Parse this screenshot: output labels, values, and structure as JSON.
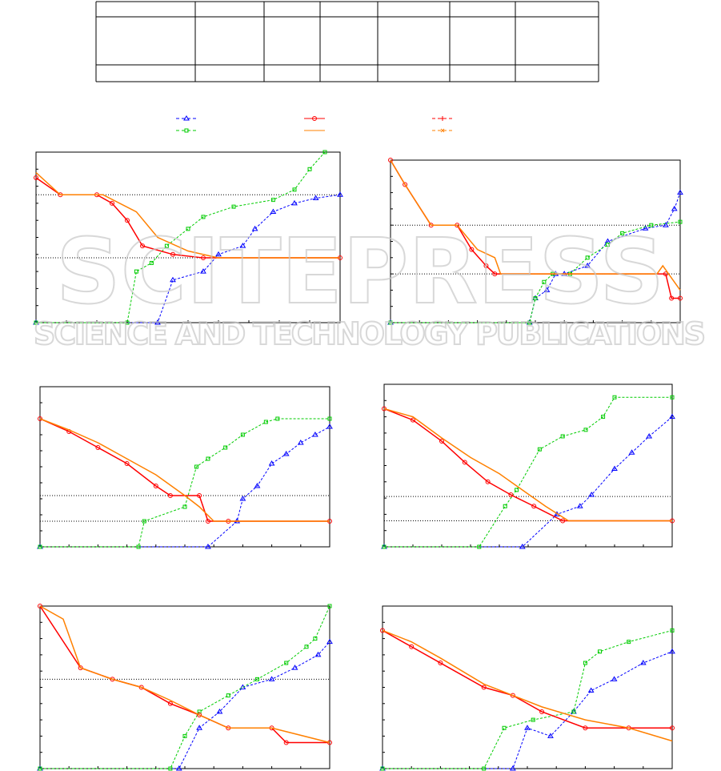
{
  "watermark": {
    "title": "SCITEPRESS",
    "subtitle": "SCIENCE AND TECHNOLOGY PUBLICATIONS"
  },
  "chart_data": [
    {
      "type": "line",
      "xlim": [
        0,
        100
      ],
      "ylim": [
        0,
        100
      ],
      "hlines": [
        75,
        38
      ],
      "series": [
        {
          "color": "#0000ff",
          "marker": "triangle",
          "dashed": true,
          "x": [
            0,
            40,
            45,
            55,
            60,
            68,
            72,
            78,
            85,
            92,
            100
          ],
          "values": [
            0,
            0,
            25,
            30,
            40,
            45,
            55,
            65,
            70,
            73,
            75
          ]
        },
        {
          "color": "#00cc00",
          "marker": "square",
          "dashed": true,
          "x": [
            0,
            30,
            33,
            38,
            43,
            50,
            55,
            65,
            78,
            85,
            90,
            95
          ],
          "values": [
            0,
            0,
            30,
            35,
            45,
            55,
            62,
            68,
            72,
            78,
            90,
            100
          ]
        },
        {
          "color": "#ff0000",
          "marker": "circle",
          "dashed": false,
          "x": [
            0,
            8,
            20,
            25,
            30,
            35,
            45,
            55,
            100
          ],
          "values": [
            85,
            75,
            75,
            70,
            60,
            45,
            40,
            38,
            38
          ]
        },
        {
          "color": "#ff8000",
          "marker": "none",
          "dashed": false,
          "x": [
            0,
            8,
            22,
            33,
            40,
            50,
            60,
            100
          ],
          "values": [
            88,
            75,
            75,
            65,
            50,
            42,
            38,
            38
          ]
        }
      ]
    },
    {
      "type": "line",
      "xlim": [
        0,
        100
      ],
      "ylim": [
        0,
        100
      ],
      "hlines": [
        60,
        30
      ],
      "series": [
        {
          "color": "#0000ff",
          "marker": "triangle",
          "dashed": true,
          "x": [
            0,
            48,
            50,
            54,
            57,
            60,
            68,
            75,
            88,
            95,
            98,
            100
          ],
          "values": [
            0,
            0,
            15,
            20,
            30,
            30,
            35,
            50,
            58,
            60,
            70,
            80
          ]
        },
        {
          "color": "#00cc00",
          "marker": "square",
          "dashed": true,
          "x": [
            0,
            48,
            50,
            53,
            56,
            62,
            68,
            75,
            80,
            90,
            100
          ],
          "values": [
            0,
            0,
            15,
            25,
            30,
            30,
            40,
            48,
            55,
            60,
            62
          ]
        },
        {
          "color": "#ff0000",
          "marker": "circle",
          "dashed": false,
          "x": [
            0,
            5,
            14,
            23,
            28,
            33,
            36,
            95,
            97,
            100
          ],
          "values": [
            100,
            85,
            60,
            60,
            45,
            35,
            30,
            30,
            15,
            15
          ]
        },
        {
          "color": "#ff8000",
          "marker": "none",
          "dashed": false,
          "x": [
            0,
            5,
            14,
            23,
            30,
            36,
            38,
            92,
            94,
            100
          ],
          "values": [
            100,
            85,
            60,
            60,
            45,
            40,
            30,
            30,
            35,
            20
          ]
        }
      ]
    },
    {
      "type": "line",
      "xlim": [
        0,
        100
      ],
      "ylim": [
        0,
        100
      ],
      "hlines": [
        32,
        16
      ],
      "series": [
        {
          "color": "#0000ff",
          "marker": "triangle",
          "dashed": true,
          "x": [
            0,
            58,
            68,
            70,
            75,
            80,
            85,
            90,
            95,
            100
          ],
          "values": [
            0,
            0,
            16,
            30,
            38,
            52,
            58,
            65,
            70,
            75
          ]
        },
        {
          "color": "#00cc00",
          "marker": "square",
          "dashed": true,
          "x": [
            0,
            34,
            36,
            50,
            54,
            58,
            64,
            70,
            78,
            82,
            100
          ],
          "values": [
            0,
            0,
            16,
            25,
            50,
            55,
            62,
            70,
            78,
            80,
            80
          ]
        },
        {
          "color": "#ff0000",
          "marker": "circle",
          "dashed": false,
          "x": [
            0,
            10,
            20,
            30,
            40,
            45,
            55,
            58,
            65,
            100
          ],
          "values": [
            80,
            72,
            62,
            52,
            38,
            32,
            32,
            16,
            16,
            16
          ]
        },
        {
          "color": "#ff8000",
          "marker": "none",
          "dashed": false,
          "x": [
            0,
            10,
            20,
            30,
            40,
            50,
            55,
            60,
            100
          ],
          "values": [
            80,
            73,
            65,
            55,
            45,
            32,
            25,
            16,
            16
          ]
        }
      ]
    },
    {
      "type": "line",
      "xlim": [
        0,
        100
      ],
      "ylim": [
        0,
        100
      ],
      "hlines": [
        31,
        16
      ],
      "series": [
        {
          "color": "#0000ff",
          "marker": "triangle",
          "dashed": true,
          "x": [
            0,
            48,
            60,
            68,
            72,
            80,
            86,
            92,
            100
          ],
          "values": [
            0,
            0,
            20,
            25,
            32,
            48,
            58,
            68,
            80
          ]
        },
        {
          "color": "#00cc00",
          "marker": "square",
          "dashed": true,
          "x": [
            0,
            33,
            42,
            46,
            54,
            62,
            70,
            76,
            80,
            100
          ],
          "values": [
            0,
            0,
            25,
            35,
            60,
            68,
            72,
            80,
            92,
            92
          ]
        },
        {
          "color": "#ff0000",
          "marker": "circle",
          "dashed": false,
          "x": [
            0,
            10,
            20,
            28,
            36,
            44,
            52,
            62,
            100
          ],
          "values": [
            85,
            78,
            65,
            52,
            40,
            32,
            25,
            16,
            16
          ]
        },
        {
          "color": "#ff8000",
          "marker": "none",
          "dashed": false,
          "x": [
            0,
            10,
            20,
            30,
            40,
            48,
            56,
            64,
            100
          ],
          "values": [
            85,
            80,
            67,
            55,
            45,
            35,
            25,
            16,
            16
          ]
        }
      ]
    },
    {
      "type": "line",
      "xlim": [
        0,
        100
      ],
      "ylim": [
        0,
        100
      ],
      "hlines": [
        55
      ],
      "series": [
        {
          "color": "#0000ff",
          "marker": "triangle",
          "dashed": true,
          "x": [
            0,
            48,
            55,
            62,
            70,
            80,
            88,
            96,
            100
          ],
          "values": [
            0,
            0,
            25,
            35,
            50,
            55,
            62,
            70,
            78
          ]
        },
        {
          "color": "#00cc00",
          "marker": "square",
          "dashed": true,
          "x": [
            0,
            45,
            50,
            55,
            65,
            75,
            85,
            92,
            95,
            100
          ],
          "values": [
            0,
            0,
            20,
            35,
            45,
            55,
            65,
            75,
            80,
            100
          ]
        },
        {
          "color": "#ff0000",
          "marker": "circle",
          "dashed": false,
          "x": [
            0,
            14,
            25,
            35,
            45,
            55,
            65,
            80,
            85,
            100
          ],
          "values": [
            100,
            62,
            55,
            50,
            40,
            33,
            25,
            25,
            16,
            16
          ]
        },
        {
          "color": "#ff8000",
          "marker": "none",
          "dashed": false,
          "x": [
            0,
            8,
            14,
            25,
            35,
            45,
            55,
            65,
            80,
            100
          ],
          "values": [
            100,
            92,
            62,
            55,
            50,
            42,
            33,
            25,
            25,
            16
          ]
        }
      ]
    },
    {
      "type": "line",
      "xlim": [
        0,
        100
      ],
      "ylim": [
        0,
        100
      ],
      "hlines": [],
      "series": [
        {
          "color": "#0000ff",
          "marker": "triangle",
          "dashed": true,
          "x": [
            0,
            45,
            50,
            58,
            66,
            72,
            80,
            90,
            100
          ],
          "values": [
            0,
            0,
            25,
            20,
            35,
            48,
            55,
            65,
            72
          ]
        },
        {
          "color": "#00cc00",
          "marker": "square",
          "dashed": true,
          "x": [
            0,
            35,
            42,
            52,
            66,
            70,
            75,
            85,
            100
          ],
          "values": [
            0,
            0,
            25,
            30,
            35,
            65,
            72,
            78,
            85
          ]
        },
        {
          "color": "#ff0000",
          "marker": "circle",
          "dashed": false,
          "x": [
            0,
            10,
            20,
            35,
            45,
            55,
            70,
            85,
            100
          ],
          "values": [
            85,
            75,
            65,
            50,
            45,
            35,
            25,
            25,
            25
          ]
        },
        {
          "color": "#ff8000",
          "marker": "none",
          "dashed": false,
          "x": [
            0,
            10,
            20,
            35,
            45,
            55,
            70,
            85,
            100
          ],
          "values": [
            85,
            78,
            68,
            52,
            45,
            38,
            30,
            25,
            17
          ]
        }
      ]
    }
  ]
}
